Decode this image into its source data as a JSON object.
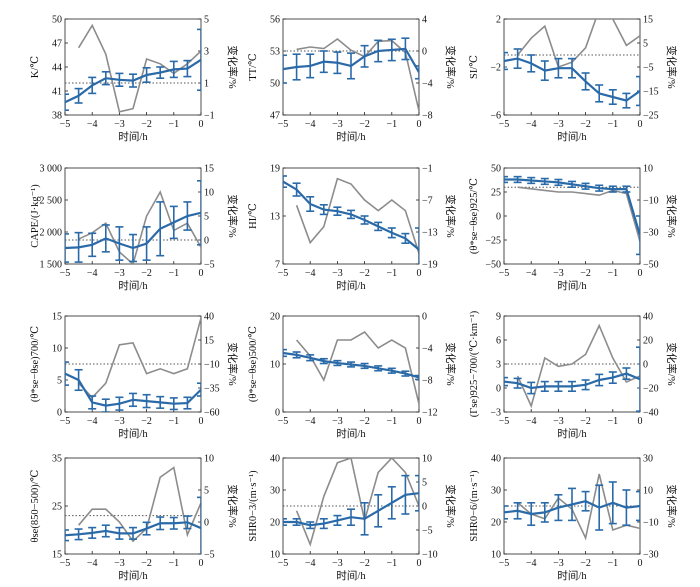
{
  "colors": {
    "series": "#2a6aa8",
    "rate": "#8c8c8c",
    "ref": "#555555",
    "axis": "#222222"
  },
  "chart_data": [
    {
      "type": "line",
      "ylabel": "K/℃",
      "y2label": "变化率/%",
      "xlabel": "时间/h",
      "xlim": [
        -5,
        0
      ],
      "xticks": [
        -5,
        -4,
        -3,
        -2,
        -1,
        0
      ],
      "ylim": [
        38,
        50
      ],
      "yticks": [
        38,
        41,
        44,
        47,
        50
      ],
      "y2lim": [
        -1,
        5
      ],
      "y2ticks": [
        -1,
        1,
        3,
        5
      ],
      "ref_y2": 1,
      "series": [
        {
          "x": [
            -5,
            -4.5,
            -4,
            -3.5,
            -3,
            -2.5,
            -2,
            -1.5,
            -1,
            -0.5,
            0
          ],
          "y": [
            39.6,
            40.4,
            41.7,
            42.6,
            42.4,
            42.3,
            43.0,
            43.3,
            43.7,
            43.8,
            44.9
          ],
          "err": [
            1.0,
            0.9,
            1.0,
            0.8,
            0.8,
            0.8,
            0.9,
            0.7,
            1.0,
            1.0,
            3.8
          ]
        }
      ],
      "rate": {
        "x": [
          -4.5,
          -4,
          -3.5,
          -3,
          -2.5,
          -2,
          -1.5,
          -1,
          -0.5,
          0
        ],
        "y": [
          3.2,
          4.6,
          2.8,
          -0.8,
          -0.6,
          2.5,
          2.2,
          1.6,
          2.2,
          3.0
        ]
      }
    },
    {
      "type": "line",
      "ylabel": "TT/℃",
      "y2label": "变化率/%",
      "xlabel": "时间/h",
      "xlim": [
        -5,
        0
      ],
      "xticks": [
        -5,
        -4,
        -3,
        -2,
        -1,
        0
      ],
      "ylim": [
        47,
        56
      ],
      "yticks": [
        47,
        50,
        53,
        56
      ],
      "y2lim": [
        -8,
        4
      ],
      "y2ticks": [
        -8,
        -4,
        0,
        4
      ],
      "ref_y2": 0,
      "series": [
        {
          "x": [
            -5,
            -4.5,
            -4,
            -3.5,
            -3,
            -2.5,
            -2,
            -1.5,
            -1,
            -0.5,
            0
          ],
          "y": [
            51.3,
            51.5,
            51.6,
            52.0,
            51.9,
            51.6,
            52.5,
            53.0,
            53.1,
            53.2,
            51.0
          ],
          "err": [
            1.3,
            1.2,
            1.1,
            1.0,
            1.0,
            1.2,
            1.0,
            1.0,
            1.0,
            1.0,
            0.6
          ]
        }
      ],
      "rate": {
        "x": [
          -4.5,
          -4,
          -3.5,
          -3,
          -2.5,
          -2,
          -1.5,
          -1,
          -0.5,
          0
        ],
        "y": [
          0.2,
          0.5,
          0.3,
          1.5,
          0.1,
          -0.7,
          1.2,
          1.3,
          -0.2,
          -7.5
        ]
      }
    },
    {
      "type": "line",
      "ylabel": "SI/℃",
      "y2label": "变化率/%",
      "xlabel": "时间/h",
      "xlim": [
        -5,
        0
      ],
      "xticks": [
        -5,
        -4,
        -3,
        -2,
        -1,
        0
      ],
      "ylim": [
        -6,
        2
      ],
      "yticks": [
        -6,
        -2,
        2
      ],
      "y2lim": [
        -25,
        15
      ],
      "y2ticks": [
        -25,
        -15,
        -5,
        5,
        15
      ],
      "ref_y2": 0,
      "series": [
        {
          "x": [
            -5,
            -4.5,
            -4,
            -3.5,
            -3,
            -2.5,
            -2,
            -1.5,
            -1,
            -0.5,
            0
          ],
          "y": [
            -1.5,
            -1.3,
            -1.7,
            -2.3,
            -2.1,
            -2.1,
            -3.2,
            -4.2,
            -4.5,
            -4.8,
            -4.0
          ],
          "err": [
            0.7,
            0.8,
            0.7,
            0.8,
            0.8,
            0.8,
            0.7,
            0.7,
            0.6,
            0.6,
            1.2
          ]
        }
      ],
      "rate": {
        "x": [
          -4.5,
          -4,
          -3.5,
          -3,
          -2.5,
          -2,
          -1.5,
          -1,
          -0.5,
          0
        ],
        "y": [
          0,
          7,
          12,
          -5,
          -3,
          3,
          19,
          15,
          4,
          8
        ]
      }
    },
    {
      "type": "line",
      "ylabel": "CAPE/(J·kg⁻¹)",
      "y2label": "变化率/%",
      "xlabel": "时间/h",
      "xlim": [
        -5,
        0
      ],
      "xticks": [
        -5,
        -4,
        -3,
        -2,
        -1,
        0
      ],
      "ylim": [
        1500,
        3000
      ],
      "yticks": [
        1500,
        2000,
        2500,
        3000
      ],
      "ytick_labels": [
        "1 500",
        "2 000",
        "2 500",
        "3 000"
      ],
      "y2lim": [
        -5,
        15
      ],
      "y2ticks": [
        -5,
        0,
        5,
        10,
        15
      ],
      "ref_y2": 0,
      "series": [
        {
          "x": [
            -5,
            -4.5,
            -4,
            -3.5,
            -3,
            -2.5,
            -2,
            -1.5,
            -1,
            -0.5,
            0
          ],
          "y": [
            1750,
            1760,
            1800,
            1900,
            1820,
            1750,
            1820,
            2050,
            2150,
            2250,
            2300
          ],
          "err": [
            220,
            230,
            180,
            210,
            260,
            210,
            260,
            420,
            250,
            220,
            500
          ]
        }
      ],
      "rate": {
        "x": [
          -4.5,
          -4,
          -3.5,
          -3,
          -2.5,
          -2,
          -1.5,
          -1,
          -0.5,
          0
        ],
        "y": [
          0.2,
          1.5,
          3.5,
          -2.5,
          -5,
          5,
          10,
          2,
          3.5,
          -1.5
        ]
      }
    },
    {
      "type": "line",
      "ylabel": "HI/℃",
      "y2label": "变化率/%",
      "xlabel": "时间/h",
      "xlim": [
        -5,
        0
      ],
      "xticks": [
        -5,
        -4,
        -3,
        -2,
        -1,
        0
      ],
      "ylim": [
        7,
        19
      ],
      "yticks": [
        7,
        13,
        19
      ],
      "y2lim": [
        -19,
        -1
      ],
      "y2ticks": [
        -19,
        -13,
        -7,
        -1
      ],
      "ref_y2": null,
      "series": [
        {
          "x": [
            -5,
            -4.5,
            -4,
            -3.5,
            -3,
            -2.5,
            -2,
            -1.5,
            -1,
            -0.5,
            0
          ],
          "y": [
            17.3,
            16.3,
            14.5,
            13.8,
            13.6,
            13.2,
            12.5,
            11.7,
            10.9,
            10.2,
            8.8
          ],
          "err": [
            0.7,
            0.8,
            0.9,
            0.6,
            0.5,
            0.5,
            0.5,
            0.5,
            0.6,
            0.6,
            2.7
          ]
        }
      ],
      "rate": {
        "x": [
          -4.5,
          -4,
          -3.5,
          -3,
          -2.5,
          -2,
          -1.5,
          -1,
          -0.5,
          0
        ],
        "y": [
          -8,
          -15,
          -12,
          -3,
          -4,
          -7,
          -9,
          -7,
          -9,
          -17
        ]
      }
    },
    {
      "type": "line",
      "ylabel": "(θ*se−θse)925/℃",
      "y2label": "变化率/%",
      "xlabel": "时间/h",
      "xlim": [
        -5,
        0
      ],
      "xticks": [
        -5,
        -4,
        -3,
        -2,
        -1,
        0
      ],
      "ylim": [
        -50,
        50
      ],
      "yticks": [
        -50,
        -25,
        0,
        25,
        50
      ],
      "y2lim": [
        -50,
        10
      ],
      "y2ticks": [
        -50,
        -30,
        -10,
        10
      ],
      "ref_y2": -2,
      "series": [
        {
          "x": [
            -5,
            -4.5,
            -4,
            -3.5,
            -3,
            -2.5,
            -2,
            -1.5,
            -1,
            -0.5,
            0
          ],
          "y": [
            38,
            38,
            37,
            36,
            35,
            33,
            31,
            29,
            28,
            28,
            -20
          ],
          "err": [
            3,
            3,
            3,
            3,
            3,
            3,
            3,
            3,
            3,
            3,
            20
          ]
        }
      ],
      "rate": {
        "x": [
          -4.5,
          -4,
          -3.5,
          -3,
          -2.5,
          -2,
          -1.5,
          -1,
          -0.5,
          0
        ],
        "y": [
          -2,
          -3,
          -4,
          -5,
          -5,
          -6,
          -7,
          -4,
          -6,
          -36
        ]
      }
    },
    {
      "type": "line",
      "ylabel": "(θ*se−θse)700/℃",
      "y2label": "变化率/%",
      "xlabel": "时间/h",
      "xlim": [
        -5,
        0
      ],
      "xticks": [
        -5,
        -4,
        -3,
        -2,
        -1,
        0
      ],
      "ylim": [
        0,
        15
      ],
      "yticks": [
        0,
        5,
        10,
        15
      ],
      "y2lim": [
        -60,
        40
      ],
      "y2ticks": [
        -60,
        -35,
        -10,
        15,
        40
      ],
      "ref_y2": -10,
      "series": [
        {
          "x": [
            -5,
            -4.5,
            -4,
            -3.5,
            -3,
            -2.5,
            -2,
            -1.5,
            -1,
            -0.5,
            0
          ],
          "y": [
            6.0,
            5.0,
            1.5,
            1.0,
            1.3,
            1.9,
            1.7,
            1.5,
            1.3,
            1.4,
            3.5
          ],
          "err": [
            1.8,
            1.6,
            1.0,
            1.0,
            1.0,
            1.0,
            1.0,
            0.9,
            0.9,
            0.9,
            1.0
          ]
        }
      ],
      "rate": {
        "x": [
          -4.5,
          -4,
          -3.5,
          -3,
          -2.5,
          -2,
          -1.5,
          -1,
          -0.5,
          0
        ],
        "y": [
          -30,
          -45,
          -30,
          10,
          12,
          -20,
          -15,
          -20,
          -15,
          38
        ]
      }
    },
    {
      "type": "line",
      "ylabel": "(θ*se−θse)500/℃",
      "y2label": "变化率/%",
      "xlabel": "时间/h",
      "xlim": [
        -5,
        0
      ],
      "xticks": [
        -5,
        -4,
        -3,
        -2,
        -1,
        0
      ],
      "ylim": [
        0,
        20
      ],
      "yticks": [
        0,
        10,
        20
      ],
      "y2lim": [
        -12,
        0
      ],
      "y2ticks": [
        -12,
        -8,
        -4,
        0
      ],
      "ref_y2": null,
      "series": [
        {
          "x": [
            -5,
            -4.5,
            -4,
            -3.5,
            -3,
            -2.5,
            -2,
            -1.5,
            -1,
            -0.5,
            0
          ],
          "y": [
            12.3,
            11.9,
            11.3,
            10.6,
            10.2,
            9.9,
            9.6,
            9.1,
            8.6,
            8.0,
            7.2
          ],
          "err": [
            0.7,
            0.6,
            0.6,
            0.5,
            0.5,
            0.5,
            0.5,
            0.5,
            0.5,
            0.5,
            0.4
          ]
        }
      ],
      "rate": {
        "x": [
          -4.5,
          -4,
          -3.5,
          -3,
          -2.5,
          -2,
          -1.5,
          -1,
          -0.5,
          0
        ],
        "y": [
          -3,
          -5,
          -8,
          -3,
          -3,
          -2,
          -4,
          -3,
          -4,
          -11
        ]
      }
    },
    {
      "type": "line",
      "ylabel": "(Γse)925−700/(℃·km⁻¹)",
      "y2label": "变化率/%",
      "xlabel": "时间/h",
      "xlim": [
        -5,
        0
      ],
      "xticks": [
        -5,
        -4,
        -3,
        -2,
        -1,
        0
      ],
      "ylim": [
        -3,
        9
      ],
      "yticks": [
        -3,
        0,
        3,
        6,
        9
      ],
      "y2lim": [
        -40,
        40
      ],
      "y2ticks": [
        -40,
        -20,
        0,
        20,
        40
      ],
      "ref_y2": 0,
      "series": [
        {
          "x": [
            -5,
            -4.5,
            -4,
            -3.5,
            -3,
            -2.5,
            -2,
            -1.5,
            -1,
            -0.5,
            0
          ],
          "y": [
            0.8,
            0.6,
            0.0,
            0.2,
            0.2,
            0.2,
            0.4,
            1.0,
            1.3,
            1.8,
            1.1
          ],
          "err": [
            0.5,
            0.6,
            0.7,
            0.6,
            0.6,
            0.6,
            0.6,
            0.7,
            0.7,
            0.7,
            4.0
          ]
        }
      ],
      "rate": {
        "x": [
          -4.5,
          -4,
          -3.5,
          -3,
          -2.5,
          -2,
          -1.5,
          -1,
          -0.5,
          0
        ],
        "y": [
          -10,
          -35,
          5,
          -2,
          0,
          8,
          32,
          5,
          -15,
          -10
        ]
      }
    },
    {
      "type": "line",
      "ylabel": "θse(850−500)/℃",
      "y2label": "变化率/%",
      "xlabel": "时间/h",
      "xlim": [
        -5,
        0
      ],
      "xticks": [
        -5,
        -4,
        -3,
        -2,
        -1,
        0
      ],
      "ylim": [
        15,
        35
      ],
      "yticks": [
        15,
        25,
        35
      ],
      "y2lim": [
        -5,
        10
      ],
      "y2ticks": [
        -5,
        0,
        5,
        10
      ],
      "ref_y2": 1,
      "series": [
        {
          "x": [
            -5,
            -4.5,
            -4,
            -3.5,
            -3,
            -2.5,
            -2,
            -1.5,
            -1,
            -0.5,
            0
          ],
          "y": [
            18.9,
            19.1,
            19.4,
            19.8,
            19.3,
            19.3,
            20.3,
            21.4,
            21.4,
            21.6,
            20.4
          ],
          "err": [
            1.1,
            1.1,
            1.1,
            1.2,
            1.2,
            1.2,
            1.3,
            1.3,
            1.2,
            1.3,
            6.4
          ]
        }
      ],
      "rate": {
        "x": [
          -4.5,
          -4,
          -3.5,
          -3,
          -2.5,
          -2,
          -1.5,
          -1,
          -0.5,
          0
        ],
        "y": [
          -0.5,
          2,
          2,
          0,
          -3,
          -1,
          7,
          8.5,
          -2,
          3
        ]
      }
    },
    {
      "type": "line",
      "ylabel": "SHR0−3/(m·s⁻¹)",
      "y2label": "变化率/%",
      "xlabel": "时间/h",
      "xlim": [
        -5,
        0
      ],
      "xticks": [
        -5,
        -4,
        -3,
        -2,
        -1,
        0
      ],
      "ylim": [
        10,
        40
      ],
      "yticks": [
        10,
        20,
        30,
        40
      ],
      "y2lim": [
        -10,
        10
      ],
      "y2ticks": [
        -10,
        -5,
        0,
        5,
        10
      ],
      "ref_y2": 0,
      "series": [
        {
          "x": [
            -5,
            -4.5,
            -4,
            -3.5,
            -3,
            -2.5,
            -2,
            -1.5,
            -1,
            -0.5,
            0
          ],
          "y": [
            20.0,
            20.0,
            19.0,
            19.5,
            20.5,
            21.5,
            21.0,
            23.5,
            26.0,
            28.5,
            29.0
          ],
          "err": [
            1.0,
            1.0,
            1.0,
            1.5,
            1.5,
            2.5,
            5.0,
            5.0,
            5.0,
            6.0,
            5.5
          ]
        }
      ],
      "rate": {
        "x": [
          -4.5,
          -4,
          -3.5,
          -3,
          -2.5,
          -2,
          -1.5,
          -1,
          -0.5,
          0
        ],
        "y": [
          -1,
          -8,
          2,
          9,
          10,
          -3,
          7,
          10,
          7,
          0
        ]
      }
    },
    {
      "type": "line",
      "ylabel": "SHR0−6/(m·s⁻¹)",
      "y2label": "变化率/%",
      "xlabel": "时间/h",
      "xlim": [
        -5,
        0
      ],
      "xticks": [
        -5,
        -4,
        -3,
        -2,
        -1,
        0
      ],
      "ylim": [
        10,
        40
      ],
      "yticks": [
        10,
        20,
        30,
        40
      ],
      "y2lim": [
        -30,
        30
      ],
      "y2ticks": [
        -30,
        -10,
        10,
        30
      ],
      "ref_y2": 0,
      "series": [
        {
          "x": [
            -5,
            -4.5,
            -4,
            -3.5,
            -3,
            -2.5,
            -2,
            -1.5,
            -1,
            -0.5,
            0
          ],
          "y": [
            23.0,
            23.5,
            22.5,
            23.0,
            24.5,
            25.5,
            26.5,
            24.5,
            26.0,
            24.5,
            25.0
          ],
          "err": [
            2.0,
            2.5,
            3.5,
            3.0,
            4.0,
            5.0,
            3.0,
            7.0,
            6.5,
            5.5,
            4.5
          ]
        }
      ],
      "rate": {
        "x": [
          -4.5,
          -4,
          -3.5,
          -3,
          -2.5,
          -2,
          -1.5,
          -1,
          -0.5,
          0
        ],
        "y": [
          2,
          -5,
          -8,
          5,
          -2,
          -20,
          20,
          -15,
          -12,
          -14
        ]
      }
    }
  ]
}
